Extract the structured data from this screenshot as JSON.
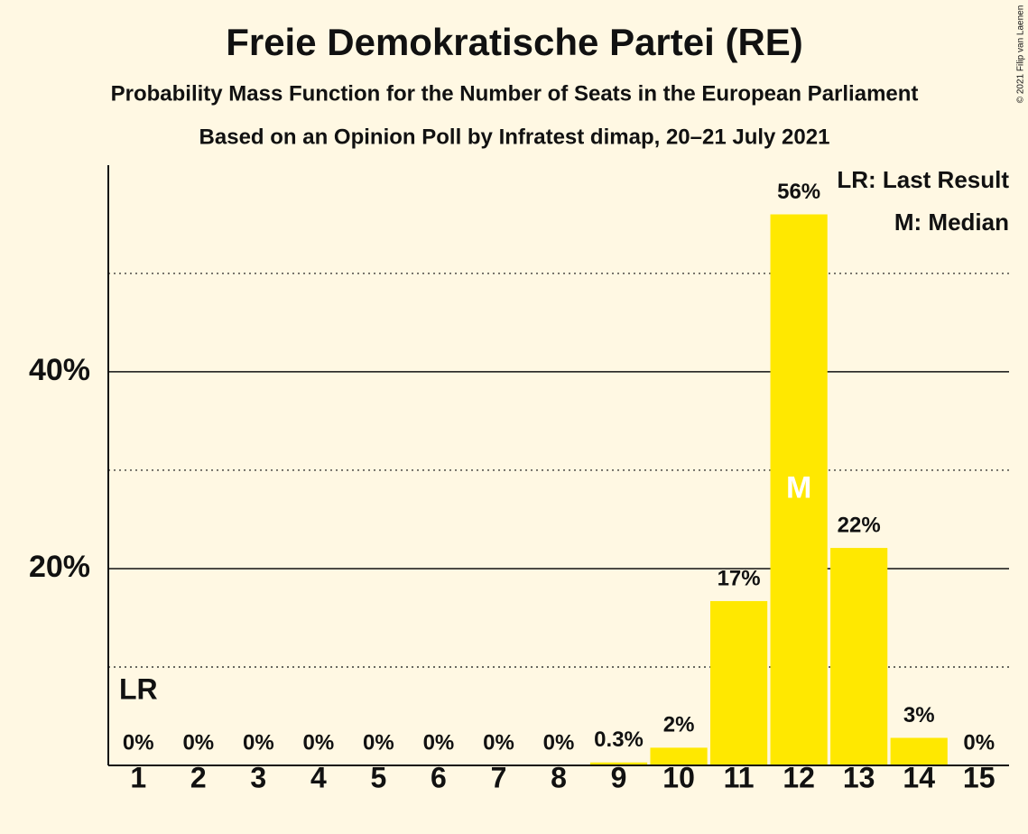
{
  "chart_data": {
    "type": "bar",
    "title": "Freie Demokratische Partei (RE)",
    "subtitles": [
      "Probability Mass Function for the Number of Seats in the European Parliament",
      "Based on an Opinion Poll by Infratest dimap, 20–21 July 2021"
    ],
    "categories": [
      "1",
      "2",
      "3",
      "4",
      "5",
      "6",
      "7",
      "8",
      "9",
      "10",
      "11",
      "12",
      "13",
      "14",
      "15"
    ],
    "values": [
      0,
      0,
      0,
      0,
      0,
      0,
      0,
      0,
      0.3,
      1.8,
      16.7,
      56,
      22.1,
      2.8,
      0
    ],
    "value_labels": [
      "0%",
      "0%",
      "0%",
      "0%",
      "0%",
      "0%",
      "0%",
      "0%",
      "0.3%",
      "2%",
      "17%",
      "56%",
      "22%",
      "3%",
      "0%"
    ],
    "color": "#ffe800",
    "ylim": [
      0,
      61
    ],
    "yticks": [
      {
        "value": 20,
        "label": "20%"
      },
      {
        "value": 40,
        "label": "40%"
      }
    ],
    "minor_yticks": [
      10,
      30,
      50
    ],
    "grid": true,
    "markers": [
      {
        "label": "LR",
        "category": "1",
        "place": "above"
      },
      {
        "label": "M",
        "category": "12",
        "place": "inside"
      }
    ],
    "legend": [
      "LR: Last Result",
      "M: Median"
    ],
    "legend_position": "upper right",
    "copyright": "© 2021 Filip van Laenen"
  }
}
